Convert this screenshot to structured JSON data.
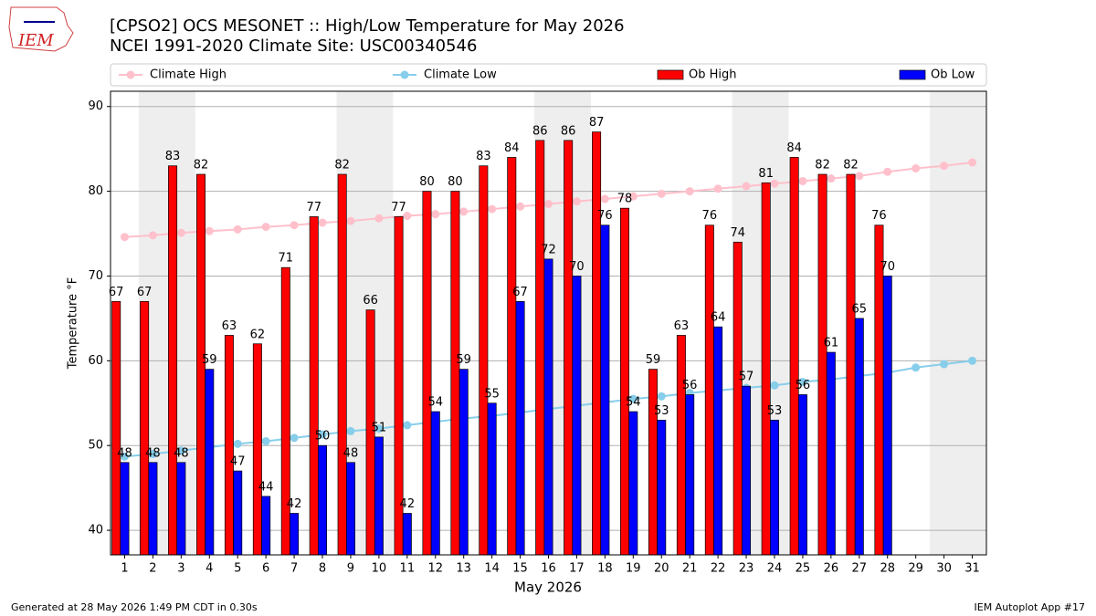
{
  "logo": "IEM",
  "chart_data": {
    "type": "bar",
    "title": "[CPSO2] OCS MESONET :: High/Low Temperature for May 2026",
    "subtitle": "NCEI 1991-2020 Climate Site: USC00340546",
    "y_label": "Temperature °F",
    "x_label": "May 2026",
    "categories": [
      "1",
      "2",
      "3",
      "4",
      "5",
      "6",
      "7",
      "8",
      "9",
      "10",
      "11",
      "12",
      "13",
      "14",
      "15",
      "16",
      "17",
      "18",
      "19",
      "20",
      "21",
      "22",
      "23",
      "24",
      "25",
      "26",
      "27",
      "28",
      "29",
      "30",
      "31"
    ],
    "series": [
      {
        "name": "Climate High",
        "kind": "line",
        "color": "#ffc0cb",
        "values": [
          74.6,
          74.8,
          75.1,
          75.3,
          75.5,
          75.8,
          76.0,
          76.3,
          76.5,
          76.8,
          77.1,
          77.3,
          77.6,
          77.9,
          78.2,
          78.5,
          78.8,
          79.1,
          79.4,
          79.7,
          80.0,
          80.3,
          80.6,
          80.9,
          81.2,
          81.5,
          81.8,
          82.3,
          82.7,
          83.0,
          83.4
        ]
      },
      {
        "name": "Climate Low",
        "kind": "line",
        "color": "#87ceeb",
        "values": [
          48.7,
          49.0,
          49.4,
          49.8,
          50.2,
          50.5,
          50.9,
          51.3,
          51.7,
          52.0,
          52.4,
          52.8,
          53.2,
          53.5,
          53.9,
          54.3,
          54.7,
          55.1,
          55.5,
          55.8,
          56.2,
          56.5,
          56.8,
          57.1,
          57.5,
          57.8,
          58.2,
          58.6,
          59.2,
          59.6,
          60.0
        ]
      },
      {
        "name": "Ob High",
        "kind": "bar",
        "color": "#ff0000",
        "values": [
          67,
          67,
          83,
          82,
          63,
          62,
          71,
          77,
          82,
          66,
          77,
          80,
          80,
          83,
          84,
          86,
          86,
          87,
          78,
          59,
          63,
          76,
          74,
          81,
          84,
          82,
          82,
          76,
          null,
          null,
          null
        ]
      },
      {
        "name": "Ob Low",
        "kind": "bar",
        "color": "#0000ff",
        "values": [
          48,
          48,
          48,
          59,
          47,
          44,
          42,
          50,
          48,
          51,
          42,
          54,
          59,
          55,
          67,
          72,
          70,
          76,
          54,
          53,
          56,
          64,
          57,
          53,
          56,
          61,
          65,
          70,
          null,
          null,
          null
        ]
      }
    ],
    "ylim": [
      37.1,
      91.8
    ],
    "yticks": [
      40,
      50,
      60,
      70,
      80,
      90
    ],
    "grid": true,
    "legend": "top"
  },
  "footer": {
    "left": "Generated at 28 May 2026 1:49 PM CDT in 0.30s",
    "right": "IEM Autoplot App #17"
  }
}
